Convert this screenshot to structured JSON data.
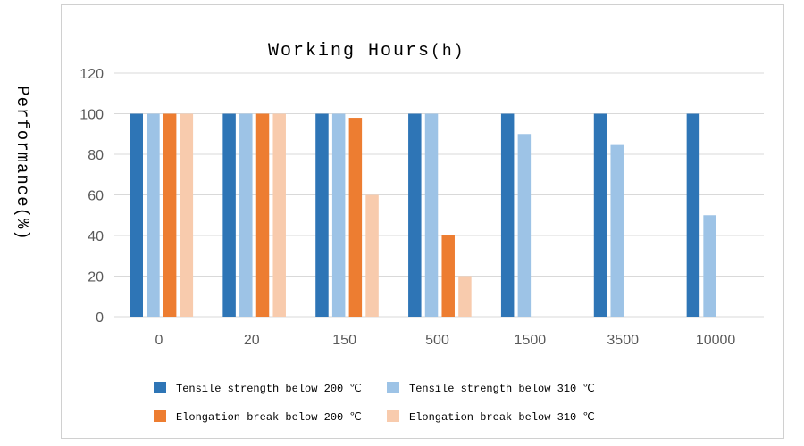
{
  "chart_data": {
    "type": "bar",
    "title": "Working Hours",
    "title_unit": "(h)",
    "ylabel": "Performance(%)",
    "xlabel": "",
    "categories": [
      "0",
      "20",
      "150",
      "500",
      "1500",
      "3500",
      "10000"
    ],
    "ylim": [
      0,
      120
    ],
    "yticks": [
      "0",
      "20",
      "40",
      "60",
      "80",
      "100",
      "120"
    ],
    "grid": true,
    "legend_position": "bottom",
    "series": [
      {
        "name": "Tensile strength below 200 ℃",
        "color": "#2e75b6",
        "values": [
          100,
          100,
          100,
          100,
          100,
          100,
          100
        ]
      },
      {
        "name": "Tensile strength below 310 ℃",
        "color": "#9dc3e6",
        "values": [
          100,
          100,
          100,
          100,
          90,
          85,
          50
        ]
      },
      {
        "name": "Elongation break below 200 ℃",
        "color": "#ed7d31",
        "values": [
          100,
          100,
          98,
          40,
          null,
          null,
          null
        ]
      },
      {
        "name": "Elongation break below 310 ℃",
        "color": "#f8cbad",
        "values": [
          100,
          100,
          60,
          20,
          null,
          null,
          null
        ]
      }
    ]
  }
}
